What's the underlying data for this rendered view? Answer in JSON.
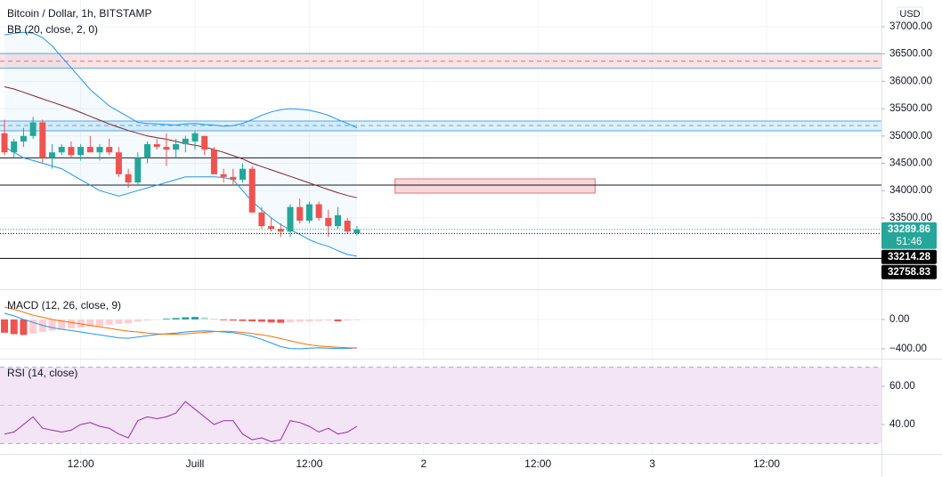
{
  "chart_data": [
    {
      "type": "candlestick",
      "title": "Bitcoin / Dollar, 1h, BITSTAMP",
      "subtitle": "BB (20, close, 2, 0)",
      "currency": "USD",
      "x": [
        0,
        1,
        2,
        3,
        4,
        5,
        6,
        7,
        8,
        9,
        10,
        11,
        12,
        13,
        14,
        15,
        16,
        17,
        18,
        19,
        20,
        21,
        22,
        23,
        24,
        25,
        26,
        27,
        28,
        29,
        30,
        31,
        32,
        33,
        34,
        35,
        36,
        37
      ],
      "xlim": [
        -0.47,
        92.06
      ],
      "xticks": [
        {
          "value": 8,
          "label": "12:00"
        },
        {
          "value": 20,
          "label": "Juill"
        },
        {
          "value": 32,
          "label": "12:00"
        },
        {
          "value": 44,
          "label": "2"
        },
        {
          "value": 56,
          "label": "12:00"
        },
        {
          "value": 68,
          "label": "3"
        },
        {
          "value": 80,
          "label": "12:00"
        }
      ],
      "ylim": [
        32195,
        37489
      ],
      "yticks": [
        {
          "value": 33500,
          "label": "33500.00"
        },
        {
          "value": 34000,
          "label": "34000.00"
        },
        {
          "value": 34500,
          "label": "34500.00"
        },
        {
          "value": 35000,
          "label": "35000.00"
        },
        {
          "value": 35500,
          "label": "35500.00"
        },
        {
          "value": 36000,
          "label": "36000.00"
        },
        {
          "value": 36500,
          "label": "36500.00"
        },
        {
          "value": 37000,
          "label": "37000.00"
        }
      ],
      "grid": true,
      "up_color": "#26a69a",
      "down_color": "#ef5350",
      "open": [
        35050,
        34700,
        34900,
        35000,
        35250,
        34600,
        34700,
        34800,
        34650,
        34800,
        34700,
        34800,
        34700,
        34300,
        34150,
        34600,
        34850,
        34800,
        34750,
        34850,
        34900,
        35000,
        34750,
        34300,
        34250,
        34200,
        34400,
        33600,
        33350,
        33300,
        33250,
        33700,
        33450,
        33750,
        33500,
        33350,
        33450,
        33220
      ],
      "high": [
        35300,
        34950,
        35150,
        35350,
        35300,
        34850,
        34850,
        34900,
        34850,
        35000,
        34850,
        34950,
        34800,
        34400,
        34700,
        34900,
        34950,
        35050,
        34950,
        35000,
        35100,
        35000,
        34800,
        34400,
        34400,
        34500,
        34450,
        33700,
        33500,
        33400,
        33750,
        33850,
        33800,
        33800,
        33650,
        33700,
        33500,
        33350
      ],
      "low": [
        34650,
        34600,
        34800,
        34950,
        34500,
        34400,
        34650,
        34600,
        34550,
        34700,
        34550,
        34650,
        34250,
        34050,
        34100,
        34500,
        34750,
        34450,
        34600,
        34700,
        34750,
        34650,
        34300,
        34150,
        34100,
        34150,
        33600,
        33300,
        33250,
        33150,
        33150,
        33400,
        33400,
        33450,
        33150,
        33300,
        33200,
        33180
      ],
      "close": [
        34700,
        34900,
        35000,
        35250,
        34600,
        34700,
        34800,
        34650,
        34800,
        34700,
        34800,
        34700,
        34300,
        34150,
        34600,
        34850,
        34800,
        34750,
        34850,
        34950,
        35050,
        34750,
        34300,
        34250,
        34200,
        34400,
        33600,
        33350,
        33300,
        33250,
        33700,
        33450,
        33750,
        33500,
        33350,
        33550,
        33250,
        33289.86
      ],
      "bb_upper": {
        "color": "#2196f3",
        "fill": "#2196f3",
        "values": [
          36850,
          36880,
          36900,
          36880,
          36800,
          36650,
          36450,
          36250,
          36050,
          35850,
          35700,
          35550,
          35450,
          35350,
          35250,
          35230,
          35220,
          35210,
          35200,
          35220,
          35230,
          35210,
          35200,
          35180,
          35190,
          35230,
          35300,
          35380,
          35440,
          35480,
          35500,
          35490,
          35470,
          35430,
          35380,
          35300,
          35230,
          35150
        ]
      },
      "bb_basis": {
        "color": "#872323",
        "values": [
          35900,
          35860,
          35800,
          35740,
          35680,
          35620,
          35560,
          35500,
          35430,
          35360,
          35290,
          35220,
          35160,
          35100,
          35050,
          35000,
          34970,
          34940,
          34900,
          34860,
          34830,
          34800,
          34750,
          34700,
          34640,
          34580,
          34500,
          34440,
          34380,
          34320,
          34260,
          34200,
          34140,
          34080,
          34020,
          33960,
          33910,
          33870
        ]
      },
      "bb_lower": {
        "color": "#2196f3",
        "values": [
          34800,
          34700,
          34600,
          34550,
          34500,
          34450,
          34400,
          34300,
          34200,
          34100,
          34000,
          33950,
          33900,
          33950,
          34000,
          34050,
          34100,
          34150,
          34200,
          34250,
          34250,
          34250,
          34250,
          34240,
          34200,
          34000,
          33800,
          33650,
          33500,
          33380,
          33280,
          33200,
          33100,
          33030,
          32980,
          32900,
          32830,
          32800
        ]
      },
      "zones": [
        {
          "from": 36240,
          "to": 36510,
          "mid": 36370,
          "fill": "#f8d7da",
          "border": "#5aa9e6",
          "mid_color": "#e57373"
        },
        {
          "from": 35095,
          "to": 35274,
          "mid": 35192,
          "fill": "#cfe8f7",
          "border": "#5aa9e6",
          "mid_color": "#5aa9e6"
        }
      ],
      "box": {
        "x": [
          41,
          62
        ],
        "from": 33954,
        "to": 34215,
        "mid": 34100,
        "fill": "#f8d7da",
        "border": "#e57373"
      },
      "lines": [
        {
          "value": 34600,
          "color": "#131722"
        },
        {
          "value": 34100,
          "color": "#131722"
        }
      ],
      "price_labels": [
        {
          "value": 33289.86,
          "color": "#26a69a",
          "style": "dotted",
          "countdown": "51:46"
        },
        {
          "value": 33214.28,
          "color": "#000000",
          "style": "dotted"
        },
        {
          "value": 32758.83,
          "color": "#000000",
          "style": "solid"
        }
      ]
    },
    {
      "type": "macd",
      "title": "MACD (12, 26, close, 9)",
      "ylim": [
        -533,
        400
      ],
      "yticks": [
        {
          "value": 0,
          "label": "0.00"
        },
        {
          "value": -400,
          "label": "−400.00"
        }
      ],
      "histogram": {
        "pos_up": "#26a69a",
        "pos_down": "#b2dfdb",
        "neg_down": "#ef5350",
        "neg_up": "#ffcdd2",
        "values": [
          -180,
          -200,
          -210,
          -190,
          -170,
          -150,
          -140,
          -120,
          -110,
          -100,
          -90,
          -70,
          -60,
          -50,
          -30,
          -15,
          -5,
          10,
          20,
          30,
          35,
          30,
          10,
          -10,
          -15,
          -20,
          -25,
          -30,
          -40,
          -45,
          -40,
          -30,
          -25,
          -20,
          -15,
          -25,
          -15,
          -10
        ]
      },
      "macd": {
        "color": "#2196f3",
        "values": [
          85,
          50,
          0,
          -40,
          -80,
          -110,
          -133,
          -150,
          -170,
          -190,
          -210,
          -230,
          -250,
          -255,
          -240,
          -220,
          -205,
          -195,
          -185,
          -170,
          -160,
          -155,
          -160,
          -170,
          -180,
          -200,
          -230,
          -270,
          -320,
          -370,
          -395,
          -400,
          -390,
          -385,
          -390,
          -395,
          -395,
          -385
        ]
      },
      "signal": {
        "color": "#ff6d00",
        "values": [
          170,
          140,
          100,
          60,
          30,
          0,
          -20,
          -40,
          -60,
          -80,
          -100,
          -120,
          -140,
          -158,
          -170,
          -185,
          -195,
          -200,
          -200,
          -195,
          -185,
          -175,
          -165,
          -160,
          -165,
          -175,
          -190,
          -210,
          -230,
          -260,
          -290,
          -320,
          -345,
          -360,
          -370,
          -378,
          -385,
          -388
        ]
      }
    },
    {
      "type": "line",
      "title": "RSI (14, close)",
      "color": "#9c27b0",
      "band_color": "#f3e5f5",
      "ylim": [
        24.6,
        74
      ],
      "yticks": [
        {
          "value": 40,
          "label": "40.00"
        },
        {
          "value": 60,
          "label": "60.00"
        }
      ],
      "bands": [
        30,
        70
      ],
      "midline": 50,
      "values": [
        35,
        36,
        40,
        44,
        38,
        37,
        36,
        37,
        40,
        41,
        39,
        38,
        35,
        33,
        42,
        44,
        43,
        44,
        46,
        52,
        48,
        44,
        40,
        42,
        42,
        35,
        32,
        33,
        31,
        32,
        42,
        41,
        39,
        36,
        38,
        35,
        36,
        39
      ]
    }
  ]
}
